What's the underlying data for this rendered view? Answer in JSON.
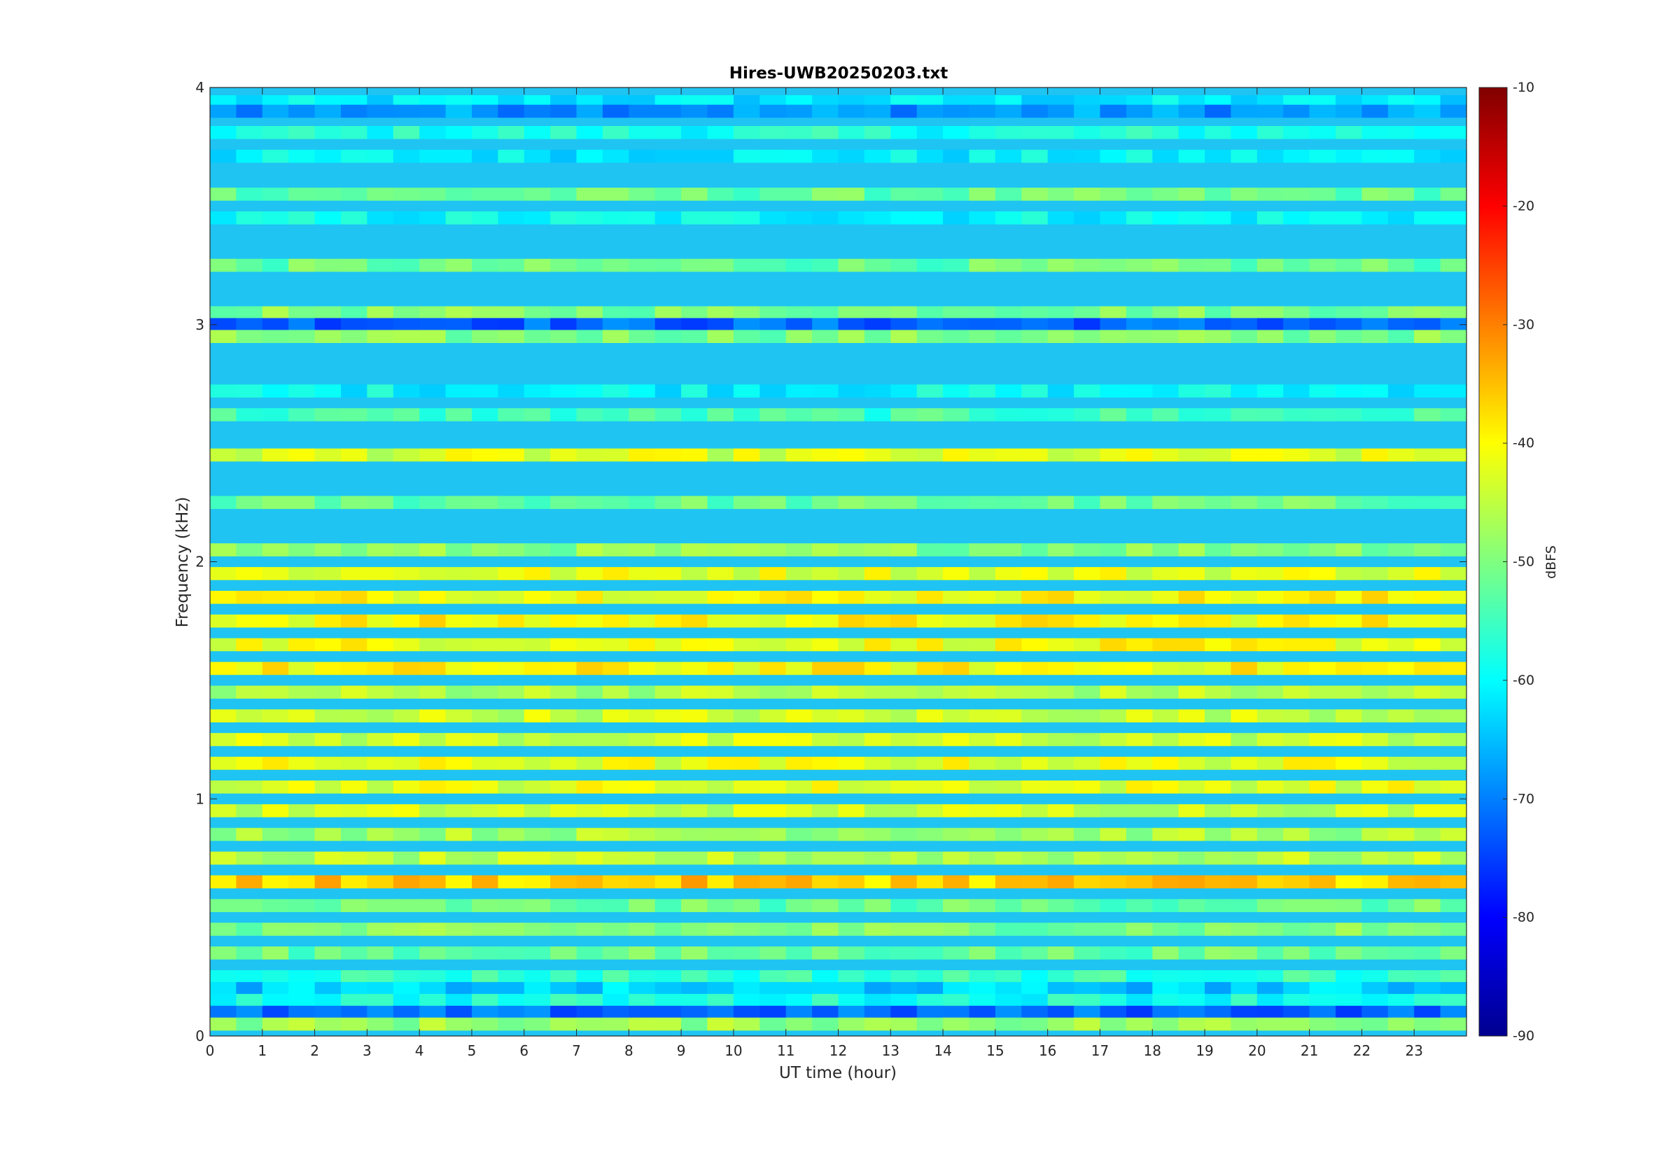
{
  "chart_data": {
    "type": "heatmap",
    "title": "Hires-UWB20250203.txt",
    "xlabel": "UT time (hour)",
    "ylabel": "Frequency (kHz)",
    "xlim": [
      0,
      24
    ],
    "ylim": [
      0,
      4
    ],
    "xticks": [
      0,
      1,
      2,
      3,
      4,
      5,
      6,
      7,
      8,
      9,
      10,
      11,
      12,
      13,
      14,
      15,
      16,
      17,
      18,
      19,
      20,
      21,
      22,
      23
    ],
    "yticks": [
      0,
      1,
      2,
      3,
      4
    ],
    "colorbar": {
      "label": "dBFS",
      "clim": [
        -90,
        -10
      ],
      "ticks": [
        -90,
        -80,
        -70,
        -60,
        -50,
        -40,
        -30,
        -20,
        -10
      ],
      "colormap": "jet"
    },
    "background_level_dbfs": -62,
    "bands": [
      {
        "f": 3.94,
        "level": -62
      },
      {
        "f": 3.9,
        "level": -68
      },
      {
        "f": 3.81,
        "level": -58
      },
      {
        "f": 3.71,
        "level": -61
      },
      {
        "f": 3.55,
        "level": -52
      },
      {
        "f": 3.45,
        "level": -60
      },
      {
        "f": 3.25,
        "level": -52
      },
      {
        "f": 3.05,
        "level": -50
      },
      {
        "f": 3.0,
        "level": -72
      },
      {
        "f": 2.95,
        "level": -50
      },
      {
        "f": 2.72,
        "level": -60
      },
      {
        "f": 2.62,
        "level": -55
      },
      {
        "f": 2.45,
        "level": -43
      },
      {
        "f": 2.25,
        "level": -52
      },
      {
        "f": 2.05,
        "level": -49
      },
      {
        "f": 1.95,
        "level": -42
      },
      {
        "f": 1.85,
        "level": -40
      },
      {
        "f": 1.75,
        "level": -40
      },
      {
        "f": 1.65,
        "level": -41
      },
      {
        "f": 1.55,
        "level": -40
      },
      {
        "f": 1.45,
        "level": -46
      },
      {
        "f": 1.35,
        "level": -44
      },
      {
        "f": 1.25,
        "level": -44
      },
      {
        "f": 1.15,
        "level": -42
      },
      {
        "f": 1.05,
        "level": -42
      },
      {
        "f": 0.95,
        "level": -44
      },
      {
        "f": 0.85,
        "level": -47
      },
      {
        "f": 0.75,
        "level": -46
      },
      {
        "f": 0.65,
        "level": -36
      },
      {
        "f": 0.55,
        "level": -52
      },
      {
        "f": 0.45,
        "level": -50
      },
      {
        "f": 0.35,
        "level": -52
      },
      {
        "f": 0.25,
        "level": -56
      },
      {
        "f": 0.2,
        "level": -64
      },
      {
        "f": 0.15,
        "level": -58
      },
      {
        "f": 0.1,
        "level": -72
      },
      {
        "f": 0.05,
        "level": -48
      }
    ]
  }
}
